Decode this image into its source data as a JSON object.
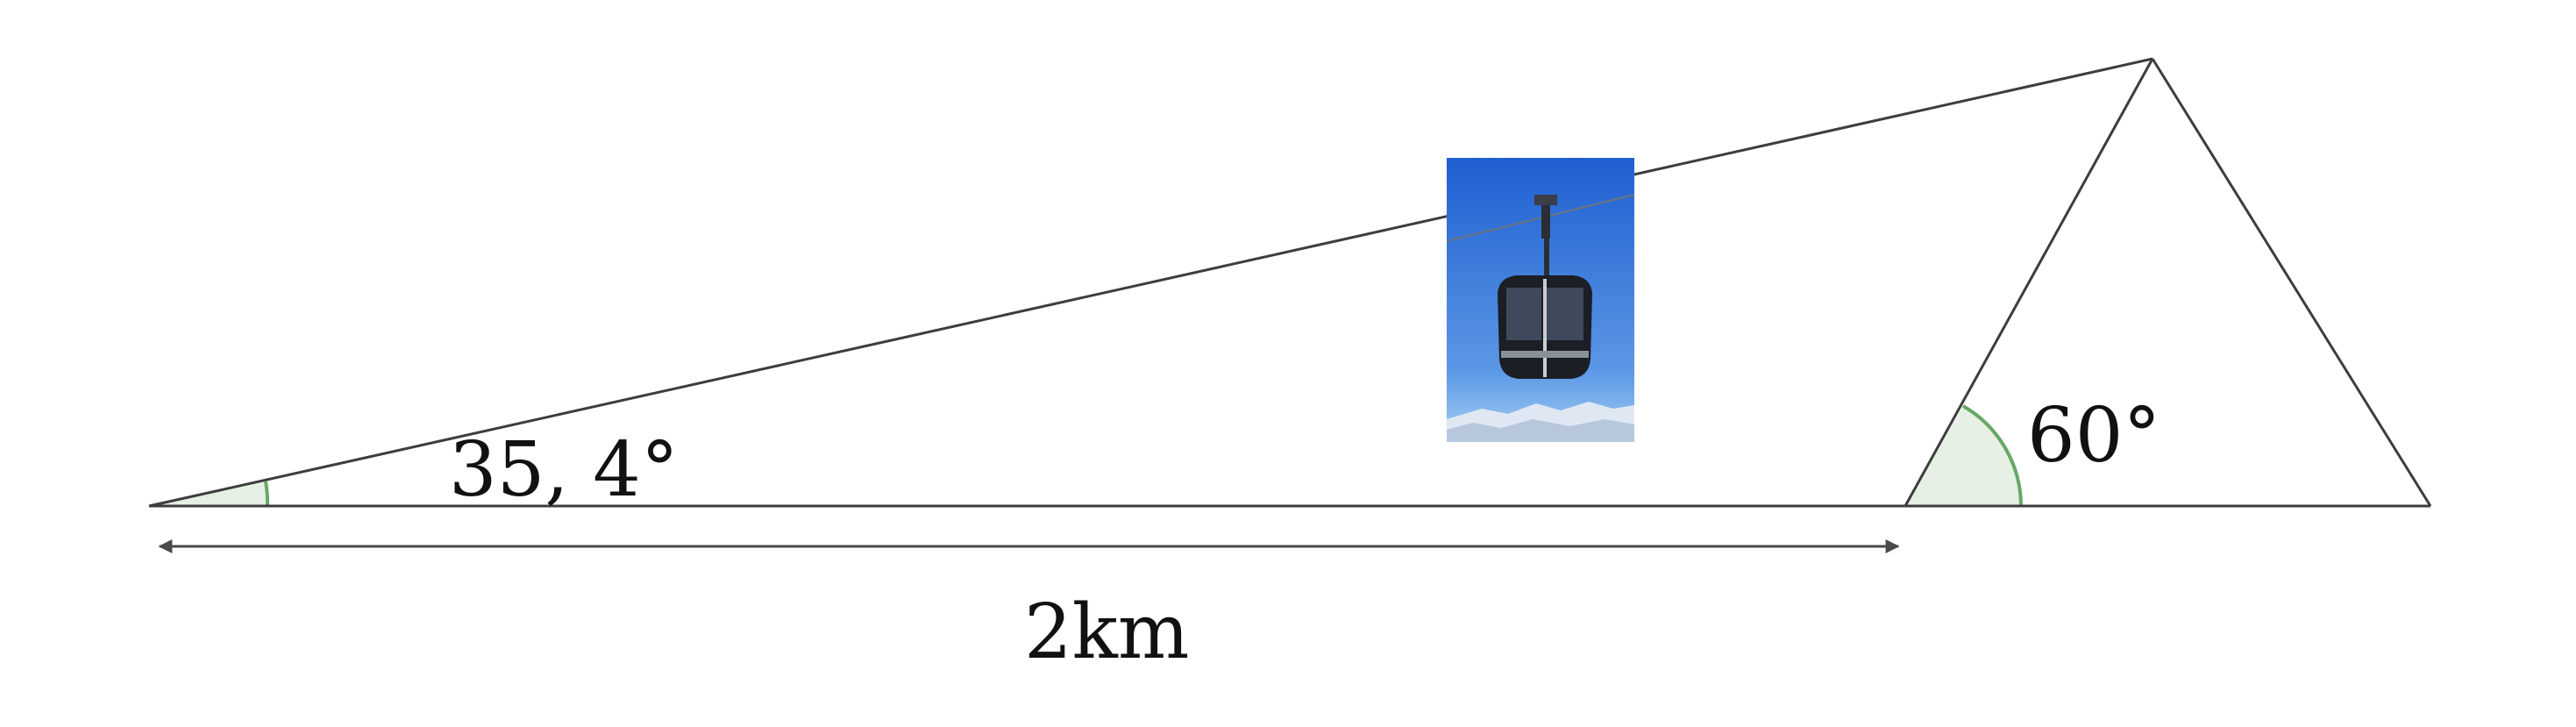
{
  "labels": {
    "angle_left": "35, 4°",
    "angle_right": "60°",
    "distance": "2km"
  },
  "icons": {
    "photo": "cable-car-gondola-photo"
  },
  "colors": {
    "line": "#3d3d3d",
    "angle_arc": "#66a866",
    "angle_fill": "#e6f0e4",
    "sky_top": "#1f5fd0",
    "sky_bottom": "#8fc1f0"
  }
}
